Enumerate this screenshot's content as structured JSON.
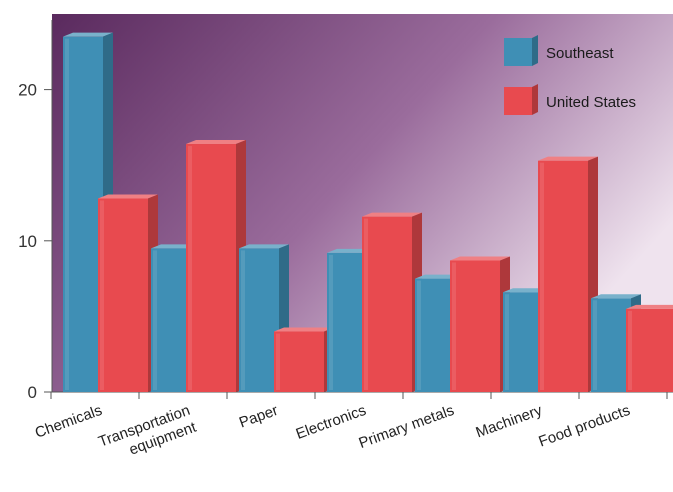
{
  "chart_data": {
    "type": "bar",
    "title": "",
    "xlabel": "",
    "ylabel": "",
    "ylim": [
      0,
      25
    ],
    "y_ticks": [
      0,
      10,
      20
    ],
    "grid": false,
    "legend_position": "top-right",
    "categories": [
      [
        "Chemicals"
      ],
      [
        "Transportation",
        "equipment"
      ],
      [
        "Paper"
      ],
      [
        "Electronics"
      ],
      [
        "Primary metals"
      ],
      [
        "Machinery"
      ],
      [
        "Food products"
      ]
    ],
    "series": [
      {
        "name": "Southeast",
        "color": "#3f8fb5",
        "values": [
          23.5,
          9.5,
          9.5,
          9.2,
          7.5,
          6.6,
          6.2
        ]
      },
      {
        "name": "United States",
        "color": "#e84a4f",
        "values": [
          12.8,
          16.4,
          4.0,
          11.6,
          8.7,
          15.3,
          5.5
        ]
      }
    ],
    "background_gradient": [
      "#5a2a5e",
      "#9a6c9c",
      "#efe3ee"
    ]
  }
}
